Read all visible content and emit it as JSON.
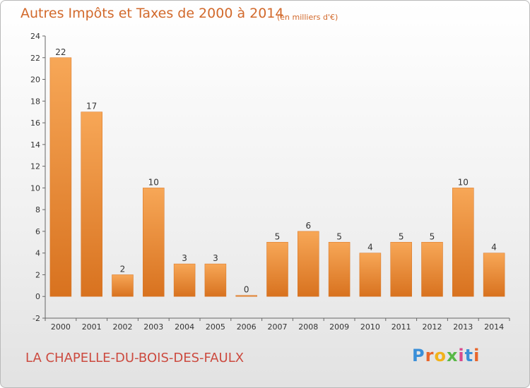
{
  "header": {
    "title": "Autres Impôts et Taxes de 2000 à 2014",
    "unit_note": "(en milliers d'€)"
  },
  "footer": {
    "commune": "LA CHAPELLE-DU-BOIS-DES-FAULX",
    "logo_letters": [
      "P",
      "r",
      "o",
      "x",
      "i",
      "t",
      "i"
    ],
    "logo_colors": [
      "#3a8fd8",
      "#e8652b",
      "#f2b21a",
      "#58b847",
      "#d94a8c",
      "#3a8fd8",
      "#e8652b"
    ]
  },
  "colors": {
    "bar_light": "#f7a757",
    "bar_dark": "#d8721f",
    "axis": "#666666",
    "grid": "#d5d5d5",
    "text": "#333333"
  },
  "chart_data": {
    "type": "bar",
    "title": "Autres Impôts et Taxes de 2000 à 2014",
    "subtitle": "(en milliers d'€)",
    "xlabel": "",
    "ylabel": "",
    "categories": [
      "2000",
      "2001",
      "2002",
      "2003",
      "2004",
      "2005",
      "2006",
      "2007",
      "2008",
      "2009",
      "2010",
      "2011",
      "2012",
      "2013",
      "2014"
    ],
    "values": [
      22,
      17,
      2,
      10,
      3,
      3,
      0,
      5,
      6,
      5,
      4,
      5,
      5,
      10,
      4
    ],
    "ylim": [
      -2,
      24
    ],
    "yticks": [
      -2,
      0,
      2,
      4,
      6,
      8,
      10,
      12,
      14,
      16,
      18,
      20,
      22,
      24
    ],
    "grid": false,
    "legend": "none"
  }
}
